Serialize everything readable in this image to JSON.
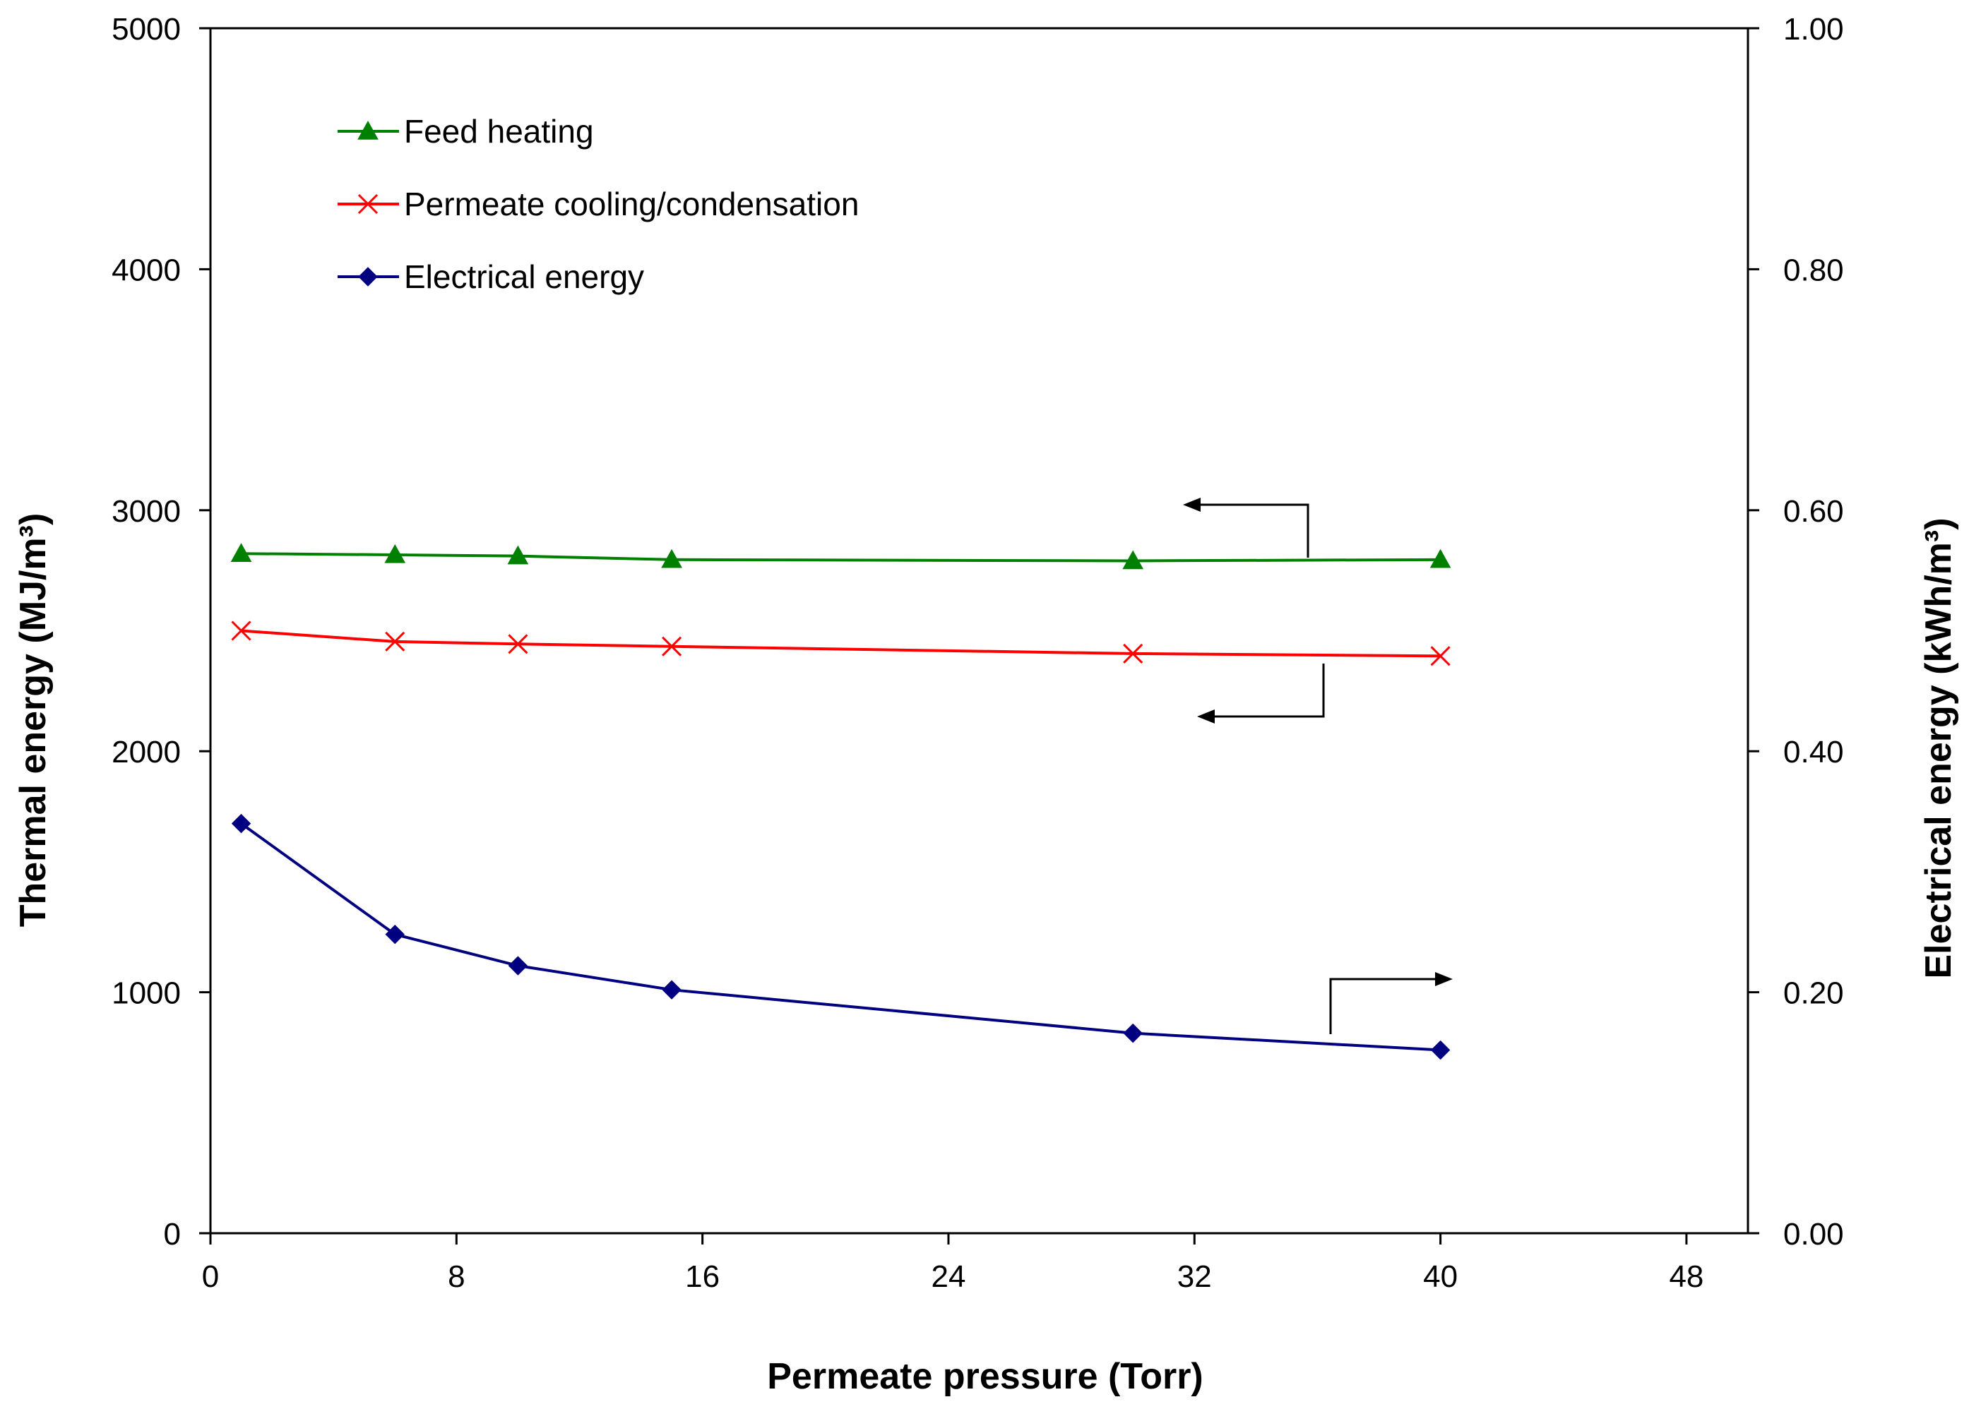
{
  "chart_data": {
    "type": "line",
    "title": "",
    "xlabel": "Permeate pressure  (Torr)",
    "ylabel_left": "Thermal energy (MJ/m³)",
    "ylabel_right": "Electrical energy (kWh/m³)",
    "xlim": [
      0,
      50
    ],
    "ylim_left": [
      0,
      5000
    ],
    "ylim_right": [
      0,
      1.0
    ],
    "x_ticks": [
      "0",
      "8",
      "16",
      "24",
      "32",
      "40",
      "48"
    ],
    "y_left_ticks": [
      "0",
      "1000",
      "2000",
      "3000",
      "4000",
      "5000"
    ],
    "y_right_ticks": [
      "0.00",
      "0.20",
      "0.40",
      "0.60",
      "0.80",
      "1.00"
    ],
    "grid": false,
    "legend_position": "top-left",
    "series": [
      {
        "name": "Feed heating",
        "axis": "left",
        "color": "#008000",
        "marker": "triangle",
        "x": [
          1,
          6,
          10,
          15,
          30,
          40
        ],
        "values": [
          2820,
          2815,
          2810,
          2795,
          2790,
          2795
        ]
      },
      {
        "name": "Permeate cooling/condensation",
        "axis": "left",
        "color": "#ff0000",
        "marker": "x",
        "x": [
          1,
          6,
          10,
          15,
          30,
          40
        ],
        "values": [
          2500,
          2455,
          2445,
          2435,
          2405,
          2395
        ]
      },
      {
        "name": "Electrical energy",
        "axis": "right",
        "color": "#000080",
        "marker": "diamond",
        "x": [
          1,
          6,
          10,
          15,
          30,
          40
        ],
        "values": [
          0.34,
          0.248,
          0.222,
          0.202,
          0.166,
          0.152
        ]
      }
    ],
    "annotations": [
      {
        "type": "arrow",
        "direction": "left",
        "points_to": "left axis",
        "series": "Feed heating"
      },
      {
        "type": "arrow",
        "direction": "left",
        "points_to": "left axis",
        "series": "Permeate cooling/condensation"
      },
      {
        "type": "arrow",
        "direction": "right",
        "points_to": "right axis",
        "series": "Electrical energy"
      }
    ]
  }
}
